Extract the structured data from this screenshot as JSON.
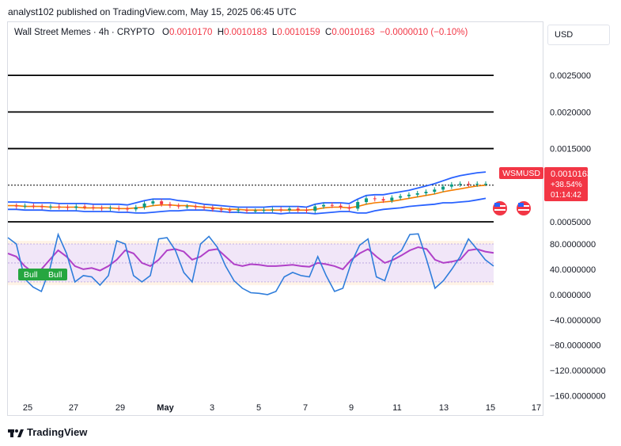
{
  "header": {
    "publisher_line": "analyst102 published on TradingView.com, May 15, 2025 06:45 UTC"
  },
  "legend": {
    "symbol": "Wall Street Memes · 4h · CRYPTO",
    "open_label": "O",
    "open": "0.0010170",
    "high_label": "H",
    "high": "0.0010183",
    "low_label": "L",
    "low": "0.0010159",
    "close_label": "C",
    "close": "0.0010163",
    "change": "−0.0000010 (−0.10%)"
  },
  "currency": "USD",
  "price_badge": {
    "symbol": "WSMUSD",
    "price": "0.0010163",
    "change": "+38.54%",
    "countdown": "01:14:42"
  },
  "indicator_badge": {
    "left": "Bull",
    "right": "Bull"
  },
  "footer": {
    "brand": "TradingView"
  },
  "colors": {
    "up": "#089981",
    "down": "#f23645",
    "band": "#2962ff",
    "mid_band": "#f57c00",
    "stoch_k": "#2f7ddb",
    "stoch_d": "#b040c8",
    "badge_green": "#26a640"
  },
  "chart_data": [
    {
      "type": "line",
      "title": "Wall Street Memes · 4h · CRYPTO",
      "x_tick_labels": [
        "25",
        "27",
        "29",
        "May",
        "3",
        "5",
        "7",
        "9",
        "11",
        "13",
        "15",
        "17"
      ],
      "y_tick_labels": [
        "0.0025000",
        "0.0020000",
        "0.0015000",
        "0.0005000"
      ],
      "ylim": [
        0.00037,
        0.00288
      ],
      "horizontal_levels": [
        0.0025,
        0.002,
        0.0015,
        0.001,
        0.0005
      ],
      "last_price": 0.0010163,
      "series": [
        {
          "name": "close",
          "values": [
            0.00072,
            0.00071,
            0.00072,
            0.00071,
            0.0007,
            0.00071,
            0.0007,
            0.00069,
            0.00071,
            0.0007,
            0.00069,
            0.00068,
            0.00069,
            0.00068,
            0.00067,
            0.0007,
            0.00075,
            0.00078,
            0.00074,
            0.00072,
            0.00071,
            0.00071,
            0.0007,
            0.00069,
            0.00067,
            0.00066,
            0.00065,
            0.00066,
            0.00065,
            0.00065,
            0.00066,
            0.00067,
            0.00066,
            0.00068,
            0.00066,
            0.00065,
            0.00071,
            0.00073,
            0.00072,
            0.0007,
            0.00068,
            0.00077,
            0.00082,
            0.00081,
            0.00079,
            0.00083,
            0.00085,
            0.00087,
            0.00089,
            0.00091,
            0.00094,
            0.00098,
            0.00101,
            0.00102,
            0.00101,
            0.00102,
            0.00102
          ]
        },
        {
          "name": "bb_upper",
          "values": [
            0.00077,
            0.00077,
            0.00077,
            0.00076,
            0.00076,
            0.00076,
            0.00075,
            0.00075,
            0.00075,
            0.00075,
            0.00074,
            0.00074,
            0.00074,
            0.00074,
            0.00073,
            0.00076,
            0.00079,
            0.00081,
            0.00081,
            0.00081,
            0.00079,
            0.00078,
            0.00076,
            0.00074,
            0.00073,
            0.00072,
            0.00071,
            0.0007,
            0.0007,
            0.0007,
            0.0007,
            0.00071,
            0.00071,
            0.00071,
            0.00071,
            0.0007,
            0.00074,
            0.00076,
            0.00076,
            0.00076,
            0.00075,
            0.00081,
            0.00086,
            0.00087,
            0.00087,
            0.00089,
            0.00091,
            0.00093,
            0.00096,
            0.00099,
            0.00102,
            0.00106,
            0.0011,
            0.00113,
            0.00115,
            0.00117,
            0.00118
          ]
        },
        {
          "name": "bb_middle",
          "values": [
            0.00072,
            0.00072,
            0.00071,
            0.00071,
            0.00071,
            0.0007,
            0.0007,
            0.0007,
            0.0007,
            0.00069,
            0.00069,
            0.00069,
            0.00069,
            0.00068,
            0.00068,
            0.00069,
            0.0007,
            0.00072,
            0.00073,
            0.00073,
            0.00072,
            0.00072,
            0.00071,
            0.0007,
            0.00069,
            0.00068,
            0.00067,
            0.00067,
            0.00066,
            0.00066,
            0.00066,
            0.00066,
            0.00066,
            0.00066,
            0.00066,
            0.00066,
            0.00067,
            0.00069,
            0.0007,
            0.0007,
            0.00069,
            0.00071,
            0.00074,
            0.00076,
            0.00077,
            0.00078,
            0.0008,
            0.00082,
            0.00084,
            0.00086,
            0.00088,
            0.00091,
            0.00093,
            0.00095,
            0.00097,
            0.00099,
            0.001
          ]
        },
        {
          "name": "bb_lower",
          "values": [
            0.00067,
            0.00067,
            0.00066,
            0.00066,
            0.00066,
            0.00065,
            0.00065,
            0.00065,
            0.00065,
            0.00064,
            0.00064,
            0.00064,
            0.00064,
            0.00063,
            0.00063,
            0.00062,
            0.00062,
            0.00063,
            0.00064,
            0.00065,
            0.00065,
            0.00066,
            0.00066,
            0.00066,
            0.00065,
            0.00064,
            0.00063,
            0.00063,
            0.00062,
            0.00062,
            0.00062,
            0.00062,
            0.00061,
            0.00062,
            0.00062,
            0.00062,
            0.00061,
            0.00062,
            0.00063,
            0.00064,
            0.00064,
            0.00062,
            0.00062,
            0.00065,
            0.00067,
            0.00068,
            0.00069,
            0.00071,
            0.00072,
            0.00073,
            0.00074,
            0.00076,
            0.00076,
            0.00077,
            0.00078,
            0.0008,
            0.00082
          ]
        }
      ]
    },
    {
      "type": "line",
      "y_tick_labels": [
        "80.0000000",
        "40.0000000",
        "0.0000000",
        "−40.0000000",
        "−80.0000000",
        "−120.0000000",
        "−160.0000000"
      ],
      "ylim": [
        -173,
        100
      ],
      "overbought_band": [
        20,
        80
      ],
      "series": [
        {
          "name": "%K",
          "values": [
            90,
            80,
            25,
            12,
            5,
            40,
            95,
            65,
            20,
            30,
            28,
            15,
            30,
            85,
            80,
            30,
            20,
            30,
            88,
            90,
            70,
            35,
            20,
            80,
            92,
            75,
            45,
            22,
            10,
            3,
            2,
            0,
            5,
            28,
            35,
            30,
            28,
            60,
            30,
            5,
            10,
            50,
            78,
            88,
            28,
            22,
            60,
            70,
            95,
            96,
            55,
            10,
            22,
            40,
            60,
            88,
            72,
            55,
            45
          ]
        },
        {
          "name": "%D",
          "values": [
            65,
            60,
            45,
            35,
            40,
            55,
            70,
            60,
            45,
            40,
            42,
            38,
            45,
            55,
            70,
            65,
            50,
            45,
            55,
            70,
            72,
            68,
            55,
            60,
            70,
            72,
            60,
            48,
            45,
            48,
            47,
            45,
            45,
            46,
            47,
            45,
            44,
            50,
            48,
            45,
            40,
            55,
            65,
            72,
            60,
            50,
            55,
            62,
            70,
            75,
            72,
            55,
            50,
            52,
            55,
            70,
            72,
            68,
            66
          ]
        }
      ]
    }
  ]
}
